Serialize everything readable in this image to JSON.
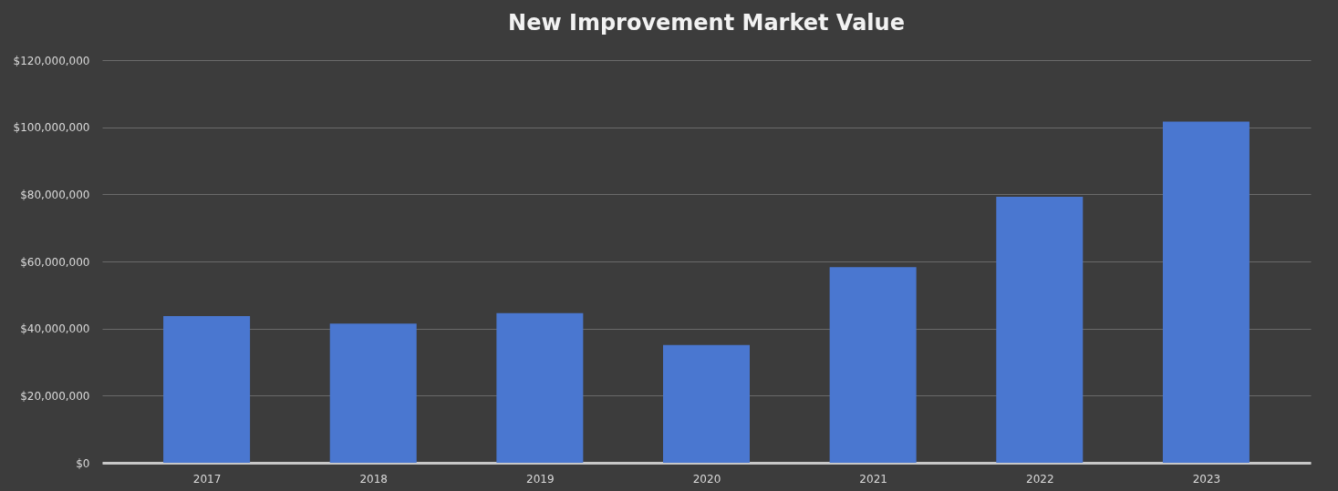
{
  "chart_data": {
    "type": "bar",
    "title": "New Improvement Market Value",
    "categories": [
      "2017",
      "2018",
      "2019",
      "2020",
      "2021",
      "2022",
      "2023"
    ],
    "values": [
      43700000,
      41500000,
      44600000,
      35100000,
      58300000,
      79300000,
      101700000
    ],
    "color": "#4a77d0",
    "ylim": [
      0,
      120000000
    ],
    "yticks": [
      {
        "value": 0,
        "label": "$0"
      },
      {
        "value": 20000000,
        "label": "$20,000,000"
      },
      {
        "value": 40000000,
        "label": "$40,000,000"
      },
      {
        "value": 60000000,
        "label": "$60,000,000"
      },
      {
        "value": 80000000,
        "label": "$80,000,000"
      },
      {
        "value": 100000000,
        "label": "$100,000,000"
      },
      {
        "value": 120000000,
        "label": "$120,000,000"
      }
    ],
    "grid": "y"
  }
}
